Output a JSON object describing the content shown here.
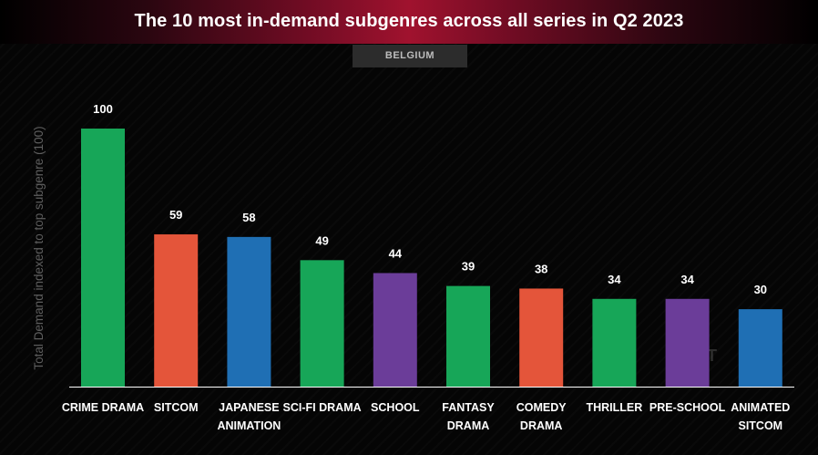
{
  "region": "BELGIUM",
  "watermark": "PA OT",
  "chart_data": {
    "type": "bar",
    "title": "The 10 most in-demand subgenres across all series in Q2 2023",
    "xlabel": "",
    "ylabel": "Total Demand indexed to top subgenre (100)",
    "ylim": [
      0,
      100
    ],
    "grid": false,
    "categories": [
      "CRIME DRAMA",
      "SITCOM",
      "JAPANESE ANIMATION",
      "SCI-FI DRAMA",
      "SCHOOL",
      "FANTASY DRAMA",
      "COMEDY DRAMA",
      "THRILLER",
      "PRE-SCHOOL",
      "ANIMATED SITCOM"
    ],
    "category_lines": [
      [
        "CRIME DRAMA"
      ],
      [
        "SITCOM"
      ],
      [
        "JAPANESE",
        "ANIMATION"
      ],
      [
        "SCI-FI DRAMA"
      ],
      [
        "SCHOOL"
      ],
      [
        "FANTASY",
        "DRAMA"
      ],
      [
        "COMEDY",
        "DRAMA"
      ],
      [
        "THRILLER"
      ],
      [
        "PRE-SCHOOL"
      ],
      [
        "ANIMATED",
        "SITCOM"
      ]
    ],
    "values": [
      100,
      59,
      58,
      49,
      44,
      39,
      38,
      34,
      34,
      30
    ],
    "colors": [
      "#17a658",
      "#e4553a",
      "#1f6fb4",
      "#17a658",
      "#6b3d99",
      "#17a658",
      "#e4553a",
      "#17a658",
      "#6b3d99",
      "#1f6fb4"
    ]
  },
  "colors": {
    "green": "#17a658",
    "orange": "#e4553a",
    "blue": "#1f6fb4",
    "purple": "#6b3d99",
    "title_band": "#a0122e"
  }
}
